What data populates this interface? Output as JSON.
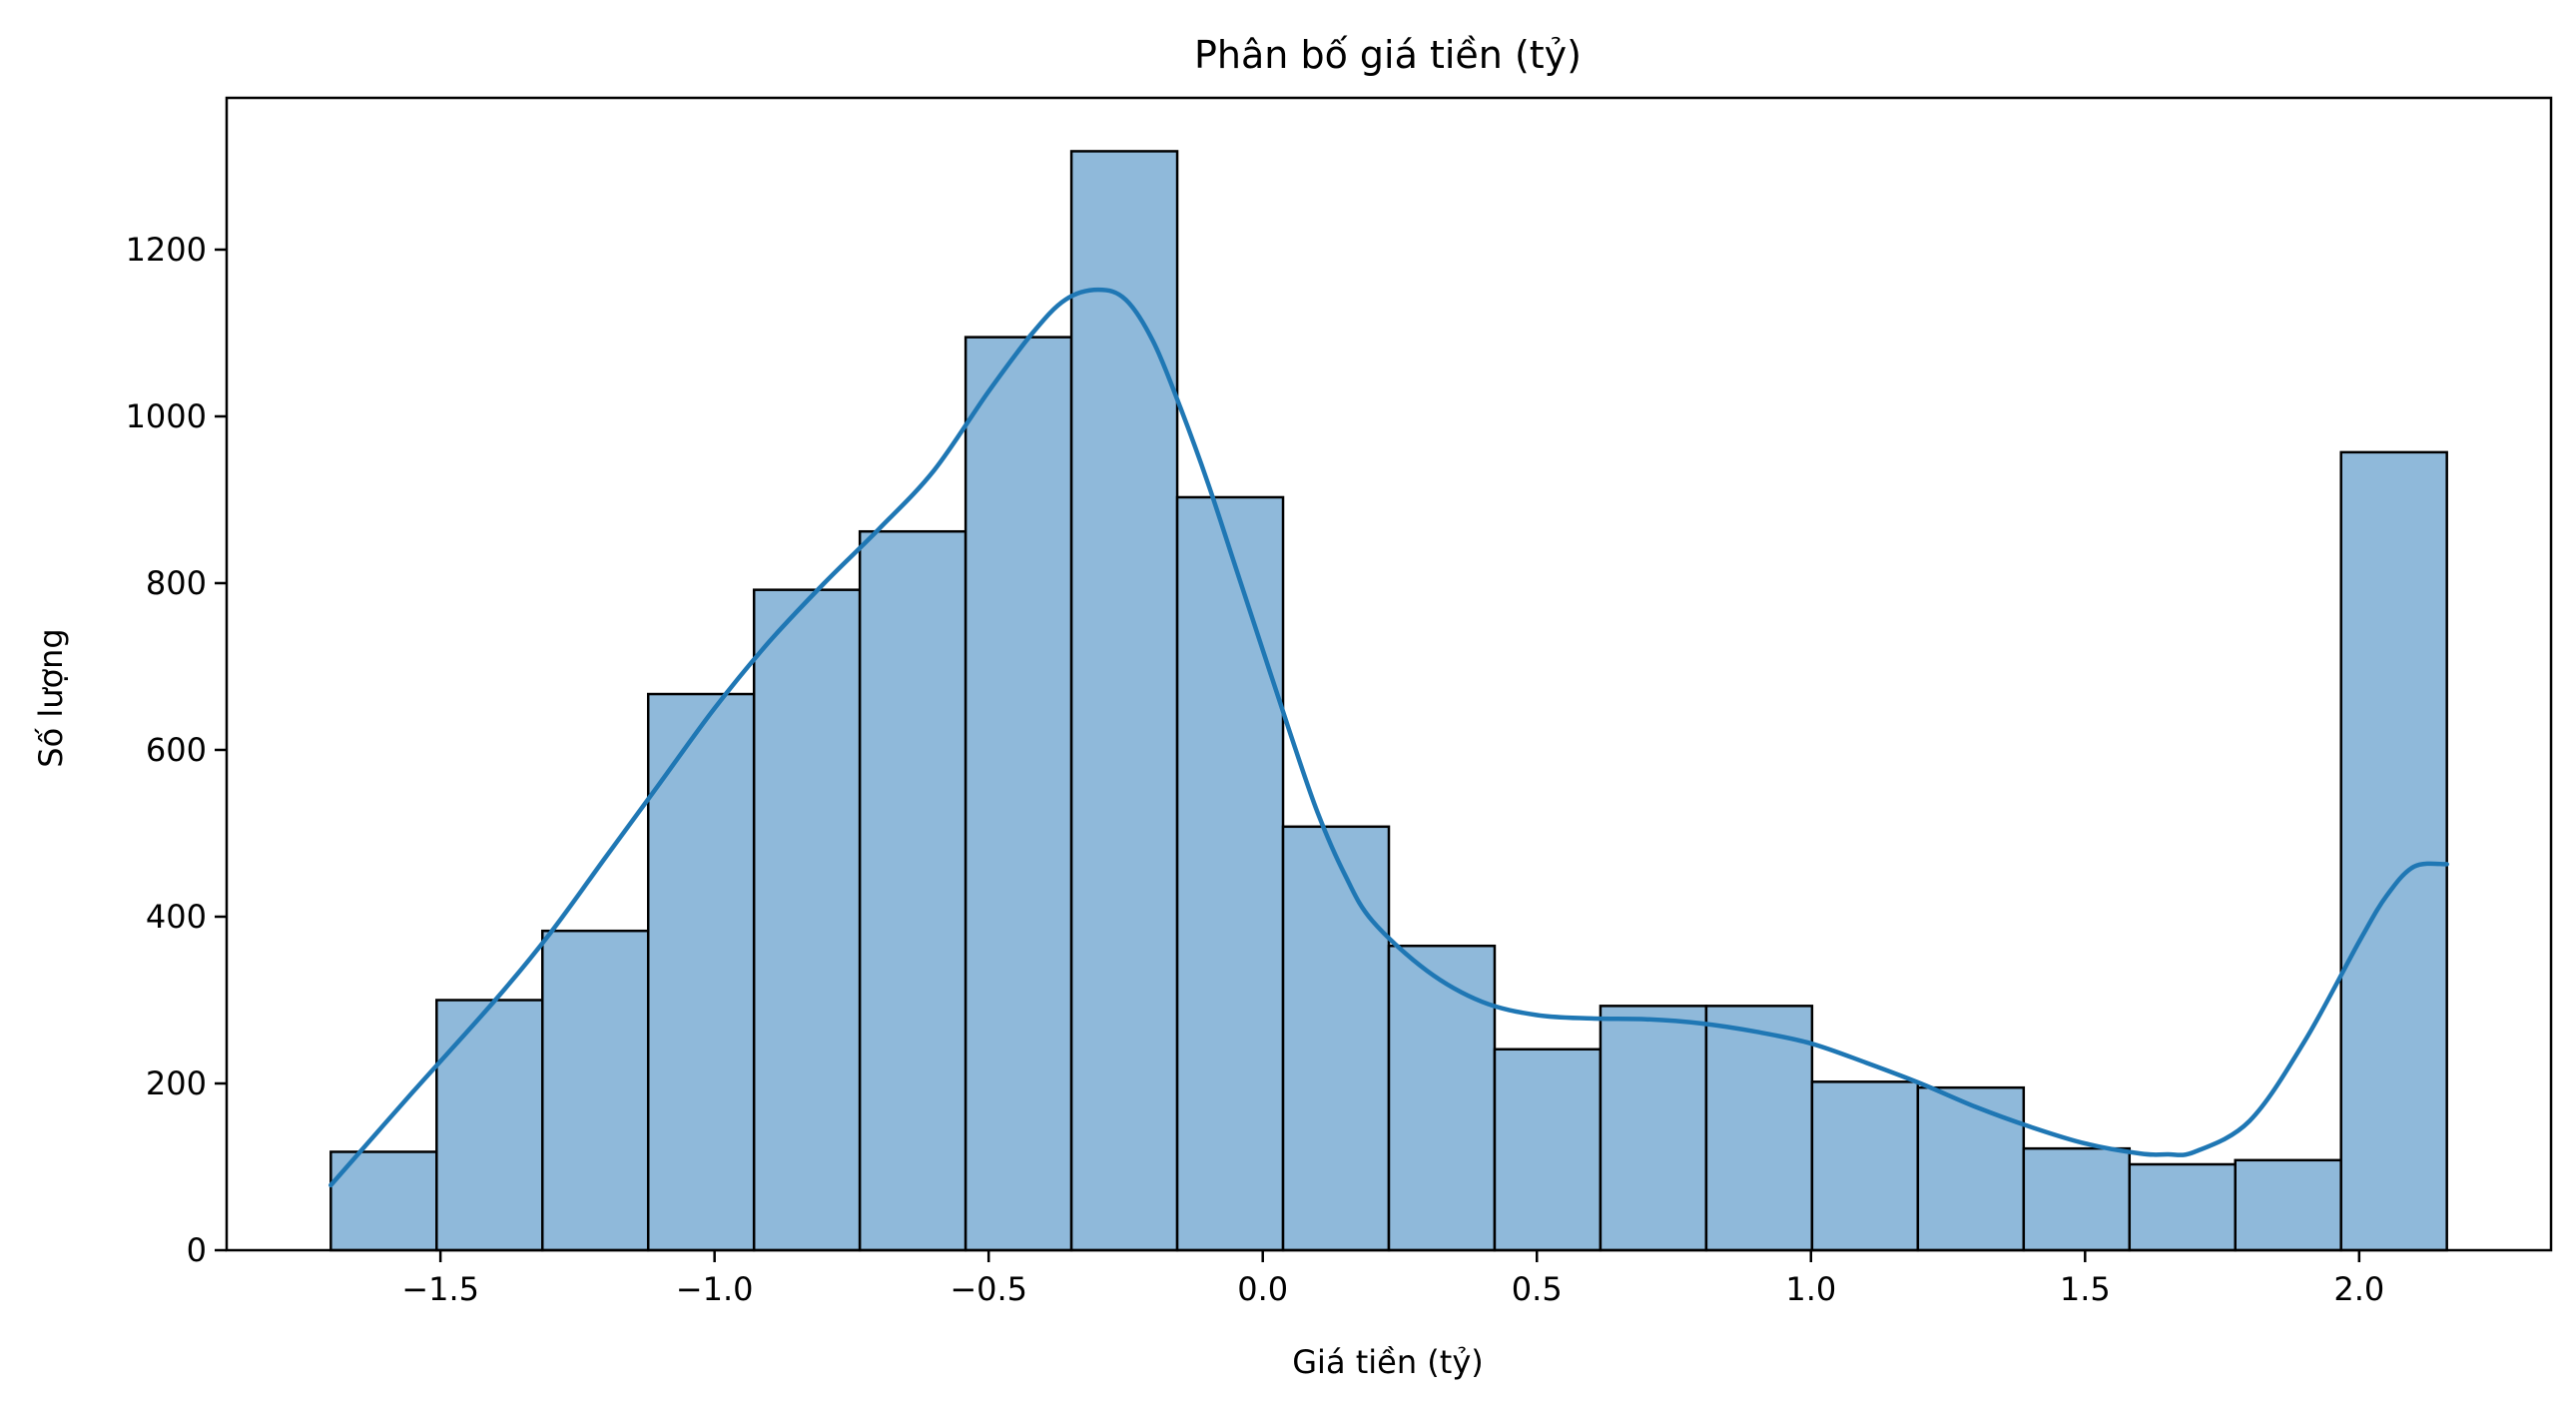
{
  "chart_data": {
    "type": "bar",
    "title": "Phân bố giá tiền (tỷ)",
    "xlabel": "Giá tiền (tỷ)",
    "ylabel": "Số lượng",
    "xlim": [
      -1.89,
      2.35
    ],
    "ylim": [
      0,
      1382
    ],
    "xticks": [
      -1.5,
      -1.0,
      -0.5,
      0.0,
      0.5,
      1.0,
      1.5,
      2.0
    ],
    "xtick_labels": [
      "−1.5",
      "−1.0",
      "−0.5",
      "0.0",
      "0.5",
      "1.0",
      "1.5",
      "2.0"
    ],
    "yticks": [
      0,
      200,
      400,
      600,
      800,
      1000,
      1200
    ],
    "ytick_labels": [
      "0",
      "200",
      "400",
      "600",
      "800",
      "1000",
      "1200"
    ],
    "grid": false,
    "bins": {
      "start": -1.7,
      "width": 0.193,
      "counts": [
        118,
        300,
        383,
        667,
        792,
        862,
        1095,
        1318,
        903,
        508,
        365,
        241,
        293,
        293,
        202,
        195,
        122,
        103,
        108,
        957
      ]
    },
    "kde": {
      "x": [
        -1.7,
        -1.55,
        -1.4,
        -1.3,
        -1.2,
        -1.1,
        -1.0,
        -0.9,
        -0.8,
        -0.7,
        -0.6,
        -0.5,
        -0.42,
        -0.36,
        -0.3,
        -0.25,
        -0.2,
        -0.15,
        -0.1,
        -0.05,
        0.0,
        0.05,
        0.1,
        0.15,
        0.2,
        0.3,
        0.4,
        0.5,
        0.6,
        0.7,
        0.8,
        0.9,
        1.0,
        1.1,
        1.2,
        1.3,
        1.4,
        1.5,
        1.6,
        1.65,
        1.7,
        1.8,
        1.9,
        2.0,
        2.05,
        2.1,
        2.16
      ],
      "y": [
        78,
        190,
        300,
        380,
        470,
        560,
        650,
        730,
        800,
        865,
        935,
        1030,
        1100,
        1140,
        1152,
        1140,
        1090,
        1010,
        920,
        820,
        720,
        620,
        525,
        450,
        395,
        335,
        298,
        282,
        278,
        277,
        272,
        262,
        248,
        225,
        200,
        172,
        148,
        128,
        116,
        115,
        118,
        155,
        250,
        370,
        425,
        460,
        463
      ]
    },
    "colors": {
      "bar_fill": "#8fb9da",
      "bar_edge": "#000000",
      "kde_line": "#1f77b4"
    }
  }
}
